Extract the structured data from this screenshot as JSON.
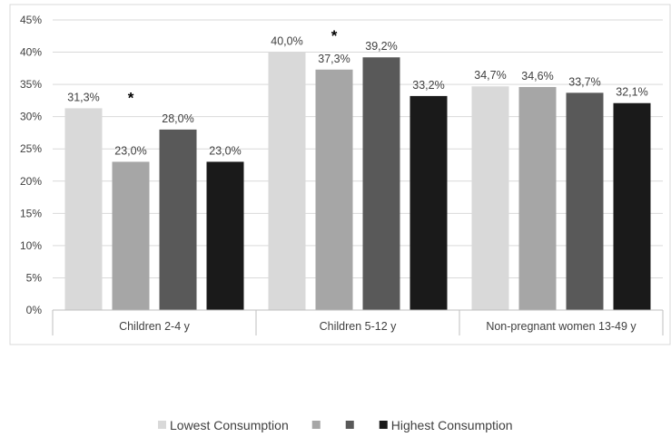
{
  "chart_data": {
    "type": "bar",
    "categories": [
      "Children 2-4 y",
      "Children 5-12 y",
      "Non-pregnant women 13-49 y"
    ],
    "series": [
      {
        "name": "Lowest Consumption",
        "values": [
          31.3,
          40.0,
          34.7
        ],
        "labels": [
          "31,3%",
          "40,0%",
          "34,7%"
        ],
        "color": "#d9d9d9"
      },
      {
        "name": "",
        "values": [
          23.0,
          37.3,
          34.6
        ],
        "labels": [
          "23,0%",
          "37,3%",
          "34,6%"
        ],
        "color": "#a6a6a6"
      },
      {
        "name": "",
        "values": [
          28.0,
          39.2,
          33.7
        ],
        "labels": [
          "28,0%",
          "39,2%",
          "33,7%"
        ],
        "color": "#595959"
      },
      {
        "name": "Highest Consumption",
        "values": [
          23.0,
          33.2,
          32.1
        ],
        "labels": [
          "23,0%",
          "33,2%",
          "32,1%"
        ],
        "color": "#1a1a1a"
      }
    ],
    "y_ticks": [
      "0%",
      "5%",
      "10%",
      "15%",
      "20%",
      "25%",
      "30%",
      "35%",
      "40%",
      "45%"
    ],
    "ylim": [
      0,
      45
    ],
    "annotations": [
      {
        "text": "*",
        "category_index": 0,
        "series_index": 1,
        "value": 33.0
      },
      {
        "text": "*",
        "category_index": 1,
        "series_index": 1,
        "value": 42.6
      }
    ],
    "grid": true,
    "legend_position": "bottom"
  }
}
